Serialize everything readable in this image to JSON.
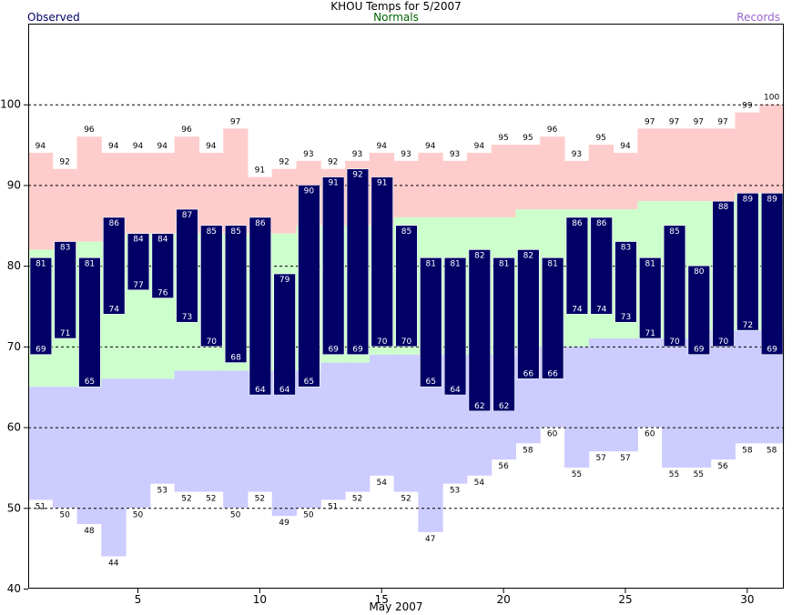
{
  "chart_data": {
    "type": "bar",
    "title": "KHOU Temps for 5/2007",
    "xlabel": "May 2007",
    "legend": {
      "observed": "Observed",
      "normals": "Normals",
      "records": "Records",
      "placement": "top"
    },
    "x": [
      1,
      2,
      3,
      4,
      5,
      6,
      7,
      8,
      9,
      10,
      11,
      12,
      13,
      14,
      15,
      16,
      17,
      18,
      19,
      20,
      21,
      22,
      23,
      24,
      25,
      26,
      27,
      28,
      29,
      30,
      31
    ],
    "xticks": [
      5,
      10,
      15,
      20,
      25,
      30
    ],
    "yticks": [
      40,
      50,
      60,
      70,
      80,
      90,
      100
    ],
    "ylim": [
      40,
      110
    ],
    "xlim": [
      0.5,
      31.5
    ],
    "grid": "horizontal dashed at 50, 60, 70, 80, 90, 100",
    "series": [
      {
        "name": "Observed",
        "high": [
          81,
          83,
          81,
          86,
          84,
          84,
          87,
          85,
          85,
          86,
          79,
          90,
          91,
          92,
          91,
          85,
          81,
          81,
          82,
          81,
          82,
          81,
          86,
          86,
          83,
          81,
          85,
          80,
          88,
          89,
          89
        ],
        "low": [
          69,
          71,
          65,
          74,
          77,
          76,
          73,
          70,
          68,
          64,
          64,
          65,
          69,
          69,
          70,
          70,
          65,
          64,
          62,
          62,
          66,
          66,
          74,
          74,
          73,
          71,
          70,
          69,
          70,
          72,
          69
        ]
      },
      {
        "name": "Normals",
        "high": [
          82,
          82,
          83,
          83,
          84,
          84,
          84,
          84,
          84,
          84,
          84,
          85,
          85,
          85,
          85,
          86,
          86,
          86,
          86,
          86,
          87,
          87,
          87,
          87,
          87,
          88,
          88,
          88,
          88,
          89,
          89
        ],
        "low": [
          65,
          65,
          65,
          66,
          66,
          66,
          67,
          67,
          67,
          67,
          67,
          67,
          68,
          68,
          69,
          69,
          69,
          69,
          69,
          69,
          70,
          70,
          70,
          71,
          71,
          71,
          71,
          71,
          72,
          72,
          72
        ]
      },
      {
        "name": "Records",
        "high": [
          94,
          92,
          96,
          94,
          94,
          94,
          96,
          94,
          97,
          91,
          92,
          93,
          92,
          93,
          94,
          93,
          94,
          93,
          94,
          95,
          95,
          96,
          93,
          95,
          94,
          97,
          97,
          97,
          97,
          99,
          100
        ],
        "low": [
          51,
          50,
          48,
          44,
          50,
          53,
          52,
          52,
          50,
          52,
          49,
          50,
          51,
          52,
          54,
          52,
          47,
          53,
          54,
          56,
          58,
          60,
          55,
          57,
          57,
          60,
          55,
          55,
          56,
          58,
          58
        ]
      }
    ],
    "colors": {
      "observed": "#000066",
      "normals": "#ccffcc",
      "record_high": "#ffcccc",
      "record_low": "#ccccff",
      "observed_text": "#ffffff"
    }
  }
}
